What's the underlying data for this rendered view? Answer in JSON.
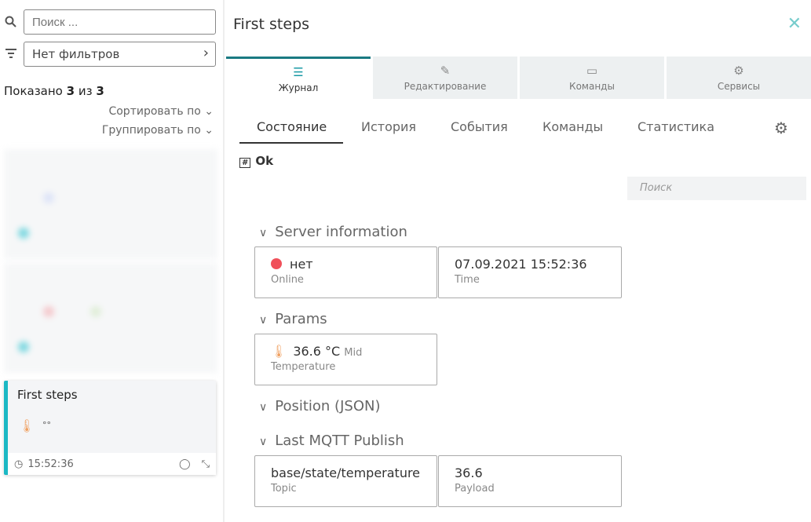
{
  "sidebar": {
    "search_placeholder": "Поиск ...",
    "filter": "Нет фильтров",
    "shown_prefix": "Показано ",
    "shown_count": "3",
    "shown_mid": " из ",
    "shown_total": "3",
    "sort_label": "Сортировать по",
    "group_label": "Группировать по",
    "card": {
      "title": "First steps",
      "time": "15:52:36"
    }
  },
  "panel": {
    "title": "First steps",
    "tabs": [
      {
        "label": "Журнал",
        "icon": "list-icon"
      },
      {
        "label": "Редактирование",
        "icon": "edit-icon"
      },
      {
        "label": "Команды",
        "icon": "terminal-icon"
      },
      {
        "label": "Сервисы",
        "icon": "services-icon"
      }
    ],
    "subtabs": [
      "Состояние",
      "История",
      "События",
      "Команды",
      "Статистика"
    ],
    "status": "Ok",
    "search_placeholder": "Поиск",
    "sections": {
      "server": "Server information",
      "params": "Params",
      "position": "Position (JSON)",
      "mqtt": "Last MQTT Publish"
    },
    "online": {
      "value": "нет",
      "label": "Online",
      "color": "#f0505a"
    },
    "time": {
      "value": "07.09.2021 15:52:36",
      "label": "Time"
    },
    "temperature": {
      "value": "36.6 °C",
      "level": "Mid",
      "label": "Temperature"
    },
    "topic": {
      "value": "base/state/temperature",
      "label": "Topic"
    },
    "payload": {
      "value": "36.6",
      "label": "Payload"
    }
  }
}
